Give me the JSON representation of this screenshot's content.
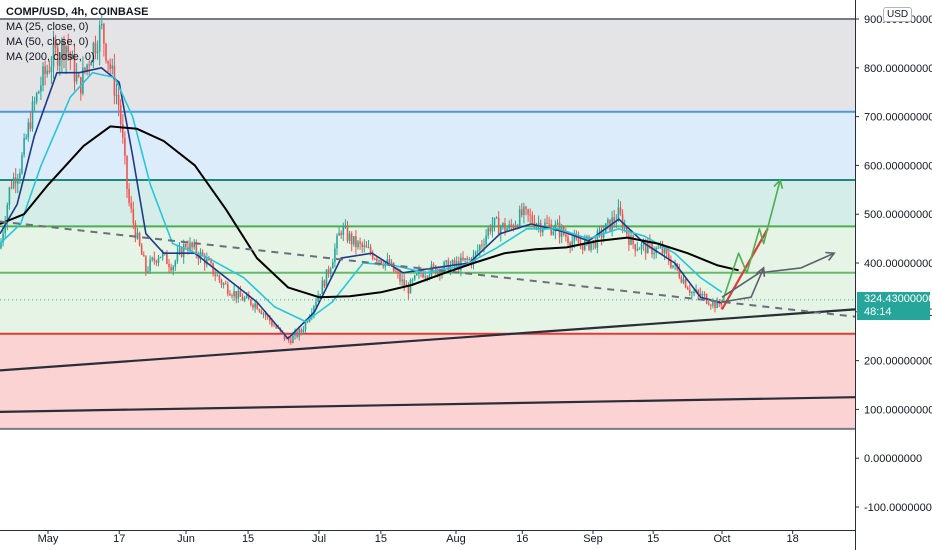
{
  "legend": {
    "title": "COMP/USD, 4h, COINBASE",
    "ma1": "MA (25, close, 0)",
    "ma2": "MA (50, close, 0)",
    "ma3": "MA (200, close, 0)"
  },
  "currency_badge": "USD",
  "last_price": {
    "value": "324.43000000",
    "countdown": "48:14",
    "color": "#26a69a"
  },
  "chart_data": {
    "type": "candlestick",
    "symbol": "COMP/USD",
    "interval": "4h",
    "exchange": "COINBASE",
    "ylim": [
      -150,
      920
    ],
    "y_ticks": [
      "900.00000000",
      "800.00000000",
      "700.00000000",
      "600.00000000",
      "500.00000000",
      "400.00000000",
      "300.00000000",
      "200.00000000",
      "100.00000000",
      "0.00000000",
      "-100.00000000"
    ],
    "x_ticks": [
      "May",
      "17",
      "Jun",
      "15",
      "Jul",
      "15",
      "Aug",
      "16",
      "Sep",
      "15",
      "Oct",
      "18"
    ],
    "zones": [
      {
        "from": 710,
        "to": 900,
        "color": "#e4e4e6"
      },
      {
        "from": 570,
        "to": 710,
        "color": "#dcecfa"
      },
      {
        "from": 475,
        "to": 570,
        "color": "#d5ede8"
      },
      {
        "from": 255,
        "to": 475,
        "color": "#e6f4e6"
      },
      {
        "from": 60,
        "to": 255,
        "color": "#fbd3d3"
      }
    ],
    "horizontal_levels": [
      {
        "price": 900,
        "color": "#787b86"
      },
      {
        "price": 710,
        "color": "#4a9ae0"
      },
      {
        "price": 570,
        "color": "#1f877d"
      },
      {
        "price": 475,
        "color": "#4caf50"
      },
      {
        "price": 380,
        "color": "#66bb6a"
      },
      {
        "price": 255,
        "color": "#e53935"
      },
      {
        "price": 60,
        "color": "#787b86"
      }
    ],
    "close_series": [
      {
        "date": "2021-04-17",
        "price": 430
      },
      {
        "date": "2021-04-20",
        "price": 560
      },
      {
        "date": "2021-04-23",
        "price": 600
      },
      {
        "date": "2021-04-26",
        "price": 700
      },
      {
        "date": "2021-04-29",
        "price": 770
      },
      {
        "date": "2021-05-02",
        "price": 820
      },
      {
        "date": "2021-05-05",
        "price": 850
      },
      {
        "date": "2021-05-08",
        "price": 760
      },
      {
        "date": "2021-05-11",
        "price": 840
      },
      {
        "date": "2021-05-13",
        "price": 880
      },
      {
        "date": "2021-05-15",
        "price": 800
      },
      {
        "date": "2021-05-17",
        "price": 720
      },
      {
        "date": "2021-05-19",
        "price": 530
      },
      {
        "date": "2021-05-21",
        "price": 450
      },
      {
        "date": "2021-05-23",
        "price": 385
      },
      {
        "date": "2021-05-26",
        "price": 420
      },
      {
        "date": "2021-05-29",
        "price": 395
      },
      {
        "date": "2021-06-01",
        "price": 440
      },
      {
        "date": "2021-06-05",
        "price": 410
      },
      {
        "date": "2021-06-09",
        "price": 360
      },
      {
        "date": "2021-06-13",
        "price": 330
      },
      {
        "date": "2021-06-17",
        "price": 315
      },
      {
        "date": "2021-06-21",
        "price": 270
      },
      {
        "date": "2021-06-24",
        "price": 240
      },
      {
        "date": "2021-06-27",
        "price": 260
      },
      {
        "date": "2021-06-30",
        "price": 320
      },
      {
        "date": "2021-07-03",
        "price": 380
      },
      {
        "date": "2021-07-06",
        "price": 470
      },
      {
        "date": "2021-07-09",
        "price": 440
      },
      {
        "date": "2021-07-13",
        "price": 420
      },
      {
        "date": "2021-07-17",
        "price": 395
      },
      {
        "date": "2021-07-21",
        "price": 345
      },
      {
        "date": "2021-07-24",
        "price": 380
      },
      {
        "date": "2021-07-28",
        "price": 390
      },
      {
        "date": "2021-08-01",
        "price": 395
      },
      {
        "date": "2021-08-05",
        "price": 410
      },
      {
        "date": "2021-08-09",
        "price": 480
      },
      {
        "date": "2021-08-13",
        "price": 470
      },
      {
        "date": "2021-08-16",
        "price": 500
      },
      {
        "date": "2021-08-20",
        "price": 480
      },
      {
        "date": "2021-08-24",
        "price": 470
      },
      {
        "date": "2021-08-28",
        "price": 440
      },
      {
        "date": "2021-09-01",
        "price": 440
      },
      {
        "date": "2021-09-04",
        "price": 470
      },
      {
        "date": "2021-09-07",
        "price": 500
      },
      {
        "date": "2021-09-10",
        "price": 440
      },
      {
        "date": "2021-09-14",
        "price": 430
      },
      {
        "date": "2021-09-17",
        "price": 425
      },
      {
        "date": "2021-09-21",
        "price": 380
      },
      {
        "date": "2021-09-24",
        "price": 340
      },
      {
        "date": "2021-09-27",
        "price": 330
      },
      {
        "date": "2021-09-30",
        "price": 312
      },
      {
        "date": "2021-10-01",
        "price": 324.43
      }
    ],
    "moving_averages": [
      {
        "name": "MA (25, close, 0)",
        "color": "#1e3a8a",
        "points": [
          {
            "date": "2021-04-17",
            "price": 460
          },
          {
            "date": "2021-04-22",
            "price": 520
          },
          {
            "date": "2021-04-27",
            "price": 660
          },
          {
            "date": "2021-05-03",
            "price": 790
          },
          {
            "date": "2021-05-08",
            "price": 790
          },
          {
            "date": "2021-05-13",
            "price": 800
          },
          {
            "date": "2021-05-17",
            "price": 770
          },
          {
            "date": "2021-05-20",
            "price": 620
          },
          {
            "date": "2021-05-23",
            "price": 460
          },
          {
            "date": "2021-05-27",
            "price": 420
          },
          {
            "date": "2021-06-03",
            "price": 420
          },
          {
            "date": "2021-06-10",
            "price": 370
          },
          {
            "date": "2021-06-17",
            "price": 320
          },
          {
            "date": "2021-06-24",
            "price": 245
          },
          {
            "date": "2021-06-30",
            "price": 300
          },
          {
            "date": "2021-07-06",
            "price": 410
          },
          {
            "date": "2021-07-13",
            "price": 420
          },
          {
            "date": "2021-07-20",
            "price": 380
          },
          {
            "date": "2021-07-27",
            "price": 390
          },
          {
            "date": "2021-08-04",
            "price": 400
          },
          {
            "date": "2021-08-11",
            "price": 460
          },
          {
            "date": "2021-08-18",
            "price": 480
          },
          {
            "date": "2021-08-25",
            "price": 465
          },
          {
            "date": "2021-08-31",
            "price": 445
          },
          {
            "date": "2021-09-07",
            "price": 490
          },
          {
            "date": "2021-09-13",
            "price": 440
          },
          {
            "date": "2021-09-20",
            "price": 400
          },
          {
            "date": "2021-09-26",
            "price": 330
          },
          {
            "date": "2021-10-01",
            "price": 318
          }
        ]
      },
      {
        "name": "MA (50, close, 0)",
        "color": "#26c6da",
        "points": [
          {
            "date": "2021-04-17",
            "price": 440
          },
          {
            "date": "2021-04-23",
            "price": 480
          },
          {
            "date": "2021-04-29",
            "price": 600
          },
          {
            "date": "2021-05-06",
            "price": 740
          },
          {
            "date": "2021-05-11",
            "price": 790
          },
          {
            "date": "2021-05-16",
            "price": 780
          },
          {
            "date": "2021-05-20",
            "price": 700
          },
          {
            "date": "2021-05-24",
            "price": 560
          },
          {
            "date": "2021-05-29",
            "price": 440
          },
          {
            "date": "2021-06-06",
            "price": 410
          },
          {
            "date": "2021-06-14",
            "price": 370
          },
          {
            "date": "2021-06-21",
            "price": 310
          },
          {
            "date": "2021-06-28",
            "price": 280
          },
          {
            "date": "2021-07-04",
            "price": 320
          },
          {
            "date": "2021-07-11",
            "price": 400
          },
          {
            "date": "2021-07-18",
            "price": 395
          },
          {
            "date": "2021-07-25",
            "price": 380
          },
          {
            "date": "2021-08-03",
            "price": 395
          },
          {
            "date": "2021-08-10",
            "price": 430
          },
          {
            "date": "2021-08-17",
            "price": 470
          },
          {
            "date": "2021-08-24",
            "price": 470
          },
          {
            "date": "2021-08-31",
            "price": 450
          },
          {
            "date": "2021-09-07",
            "price": 470
          },
          {
            "date": "2021-09-13",
            "price": 455
          },
          {
            "date": "2021-09-20",
            "price": 420
          },
          {
            "date": "2021-09-26",
            "price": 370
          },
          {
            "date": "2021-10-01",
            "price": 340
          }
        ]
      },
      {
        "name": "MA (200, close, 0)",
        "color": "#000000",
        "points": [
          {
            "date": "2021-04-17",
            "price": 480
          },
          {
            "date": "2021-04-24",
            "price": 500
          },
          {
            "date": "2021-05-01",
            "price": 560
          },
          {
            "date": "2021-05-09",
            "price": 640
          },
          {
            "date": "2021-05-15",
            "price": 680
          },
          {
            "date": "2021-05-21",
            "price": 675
          },
          {
            "date": "2021-05-27",
            "price": 650
          },
          {
            "date": "2021-06-03",
            "price": 600
          },
          {
            "date": "2021-06-10",
            "price": 510
          },
          {
            "date": "2021-06-17",
            "price": 410
          },
          {
            "date": "2021-06-24",
            "price": 350
          },
          {
            "date": "2021-07-01",
            "price": 330
          },
          {
            "date": "2021-07-08",
            "price": 332
          },
          {
            "date": "2021-07-15",
            "price": 340
          },
          {
            "date": "2021-07-22",
            "price": 355
          },
          {
            "date": "2021-07-29",
            "price": 378
          },
          {
            "date": "2021-08-05",
            "price": 400
          },
          {
            "date": "2021-08-12",
            "price": 420
          },
          {
            "date": "2021-08-19",
            "price": 428
          },
          {
            "date": "2021-08-26",
            "price": 432
          },
          {
            "date": "2021-09-02",
            "price": 445
          },
          {
            "date": "2021-09-09",
            "price": 452
          },
          {
            "date": "2021-09-16",
            "price": 440
          },
          {
            "date": "2021-09-23",
            "price": 420
          },
          {
            "date": "2021-09-30",
            "price": 395
          },
          {
            "date": "2021-10-05",
            "price": 385
          }
        ]
      }
    ],
    "trendlines": [
      {
        "name": "upper-support-line",
        "color": "#2a2e39",
        "style": "solid",
        "from": {
          "date": "2021-04-17",
          "price": 180
        },
        "to": {
          "date": "2021-11-02",
          "price": 305
        }
      },
      {
        "name": "lower-support-line",
        "color": "#2a2e39",
        "style": "solid",
        "from": {
          "date": "2021-04-17",
          "price": 95
        },
        "to": {
          "date": "2021-11-02",
          "price": 125
        }
      },
      {
        "name": "dashed-descending-line",
        "color": "#6b6f7a",
        "style": "dashed",
        "from": {
          "date": "2021-04-17",
          "price": 485
        },
        "to": {
          "date": "2021-11-02",
          "price": 290
        }
      },
      {
        "name": "red-ascending-line",
        "color": "#e53935",
        "style": "solid",
        "from": {
          "date": "2021-10-01",
          "price": 305
        },
        "to": {
          "date": "2021-10-12",
          "price": 470
        }
      }
    ],
    "projection_arrows": [
      {
        "name": "green-projection",
        "color": "#4caf50",
        "points": [
          {
            "date": "2021-10-01",
            "price": 318
          },
          {
            "date": "2021-10-05",
            "price": 420
          },
          {
            "date": "2021-10-07",
            "price": 380
          },
          {
            "date": "2021-10-10",
            "price": 470
          },
          {
            "date": "2021-10-11",
            "price": 440
          },
          {
            "date": "2021-10-15",
            "price": 570
          }
        ]
      },
      {
        "name": "gray-curve-right",
        "color": "#5d606b",
        "points": [
          {
            "date": "2021-10-01",
            "price": 330
          },
          {
            "date": "2021-10-10",
            "price": 380
          },
          {
            "date": "2021-10-20",
            "price": 390
          },
          {
            "date": "2021-10-28",
            "price": 420
          }
        ]
      },
      {
        "name": "gray-curve-up",
        "color": "#5d606b",
        "points": [
          {
            "date": "2021-10-01",
            "price": 320
          },
          {
            "date": "2021-10-08",
            "price": 330
          },
          {
            "date": "2021-10-11",
            "price": 390
          }
        ]
      }
    ],
    "grid": false,
    "legend_position": "top-left"
  }
}
